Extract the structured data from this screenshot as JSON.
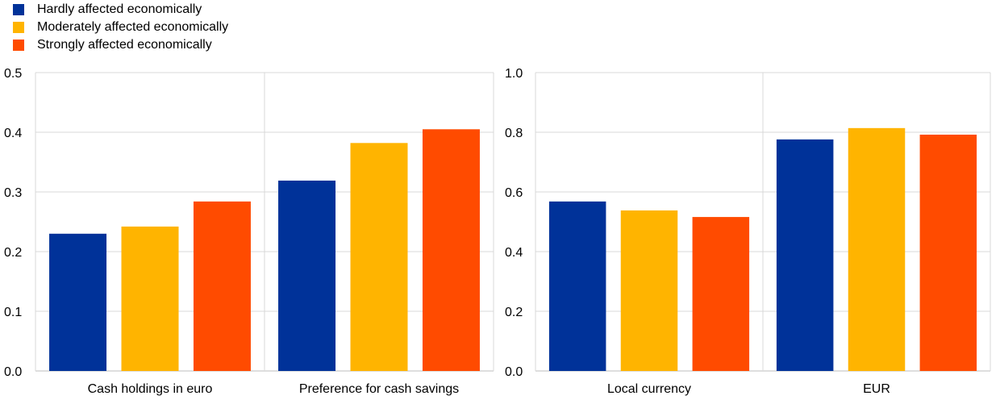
{
  "chart_data": [
    {
      "type": "bar",
      "categories": [
        "Cash holdings in euro",
        "Preference for cash savings"
      ],
      "series": [
        {
          "name": "Hardly affected economically",
          "values": [
            0.23,
            0.319
          ],
          "color": "#003299"
        },
        {
          "name": "Moderately affected economically",
          "values": [
            0.242,
            0.382
          ],
          "color": "#FFB400"
        },
        {
          "name": "Strongly affected economically",
          "values": [
            0.284,
            0.405
          ],
          "color": "#FF4B00"
        }
      ],
      "ylim": [
        0,
        0.5
      ],
      "yticks": [
        "0.0",
        "0.1",
        "0.2",
        "0.3",
        "0.4",
        "0.5"
      ],
      "grid": true
    },
    {
      "type": "bar",
      "categories": [
        "Local currency",
        "EUR"
      ],
      "series": [
        {
          "name": "Hardly affected economically",
          "values": [
            0.568,
            0.776
          ],
          "color": "#003299"
        },
        {
          "name": "Moderately affected economically",
          "values": [
            0.538,
            0.814
          ],
          "color": "#FFB400"
        },
        {
          "name": "Strongly affected economically",
          "values": [
            0.516,
            0.792
          ],
          "color": "#FF4B00"
        }
      ],
      "ylim": [
        0,
        1.0
      ],
      "yticks": [
        "0.0",
        "0.2",
        "0.4",
        "0.6",
        "0.8",
        "1.0"
      ],
      "grid": true
    }
  ],
  "legend": {
    "placement": "top-left",
    "items": [
      {
        "label": "Hardly affected economically",
        "color": "#003299"
      },
      {
        "label": "Moderately affected economically",
        "color": "#FFB400"
      },
      {
        "label": "Strongly affected economically",
        "color": "#FF4B00"
      }
    ]
  }
}
